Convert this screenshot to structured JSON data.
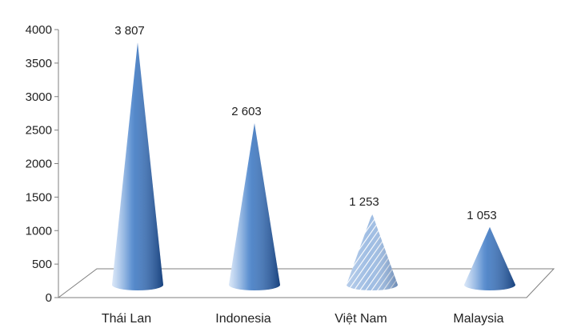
{
  "chart_data": {
    "type": "bar",
    "style": "3d-cone",
    "categories": [
      "Thái Lan",
      "Indonesia",
      "Việt Nam",
      "Malaysia"
    ],
    "values": [
      3807,
      2603,
      1253,
      1053
    ],
    "data_labels": [
      "3 807",
      "2 603",
      "1 253",
      "1 053"
    ],
    "yticks": [
      "0",
      "500",
      "1000",
      "1500",
      "2000",
      "2500",
      "3000",
      "3500",
      "4000"
    ],
    "ylim": [
      0,
      4000
    ],
    "grid": false,
    "legend": "none",
    "colors": {
      "cone_light": "#cfe0f6",
      "cone_mid": "#5b8fd0",
      "cone_dark": "#1f4f92",
      "hatched_base": "#9fbde3",
      "hatch_line": "#ffffff",
      "axis": "#7f7f7f"
    },
    "highlight_index": 2
  }
}
